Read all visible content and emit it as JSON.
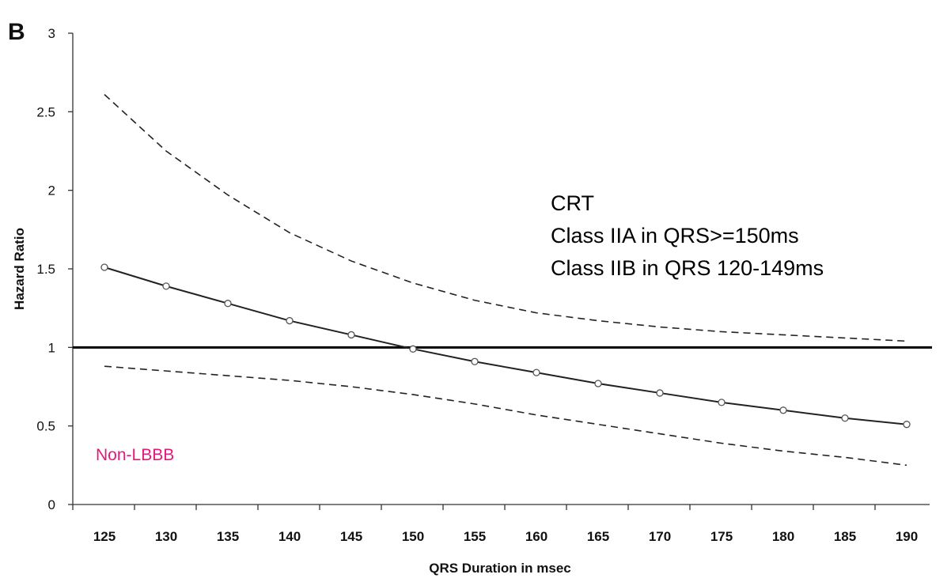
{
  "panel_label": "B",
  "annotation_lines": [
    "CRT",
    "Class IIA in QRS>=150ms",
    "Class IIB in QRS 120-149ms"
  ],
  "group_label": "Non-LBBB",
  "group_label_color": "#e6197a",
  "chart_data": {
    "type": "line",
    "xlabel": "QRS Duration in msec",
    "ylabel": "Hazard Ratio",
    "x": [
      125,
      130,
      135,
      140,
      145,
      150,
      155,
      160,
      165,
      170,
      175,
      180,
      185,
      190
    ],
    "x_tick_labels": [
      "125",
      "130",
      "135",
      "140",
      "145",
      "150",
      "155",
      "160",
      "165",
      "170",
      "175",
      "180",
      "185",
      "190"
    ],
    "y_tick_labels": [
      "0",
      "0.5",
      "1",
      "1.5",
      "2",
      "2.5",
      "3"
    ],
    "y_ticks": [
      0,
      0.5,
      1,
      1.5,
      2,
      2.5,
      3
    ],
    "ylim": [
      0,
      3
    ],
    "reference_line": 1,
    "grid": false,
    "series": [
      {
        "role": "estimate",
        "style": "solid-with-markers",
        "values": [
          1.51,
          1.39,
          1.28,
          1.17,
          1.08,
          0.99,
          0.91,
          0.84,
          0.77,
          0.71,
          0.65,
          0.6,
          0.55,
          0.51
        ]
      },
      {
        "role": "upper-ci",
        "style": "dashed",
        "values": [
          2.61,
          2.25,
          1.97,
          1.73,
          1.55,
          1.41,
          1.3,
          1.22,
          1.17,
          1.13,
          1.1,
          1.08,
          1.06,
          1.04
        ]
      },
      {
        "role": "lower-ci",
        "style": "dashed",
        "values": [
          0.88,
          0.85,
          0.82,
          0.79,
          0.75,
          0.7,
          0.64,
          0.57,
          0.51,
          0.45,
          0.39,
          0.34,
          0.3,
          0.25
        ]
      }
    ]
  }
}
